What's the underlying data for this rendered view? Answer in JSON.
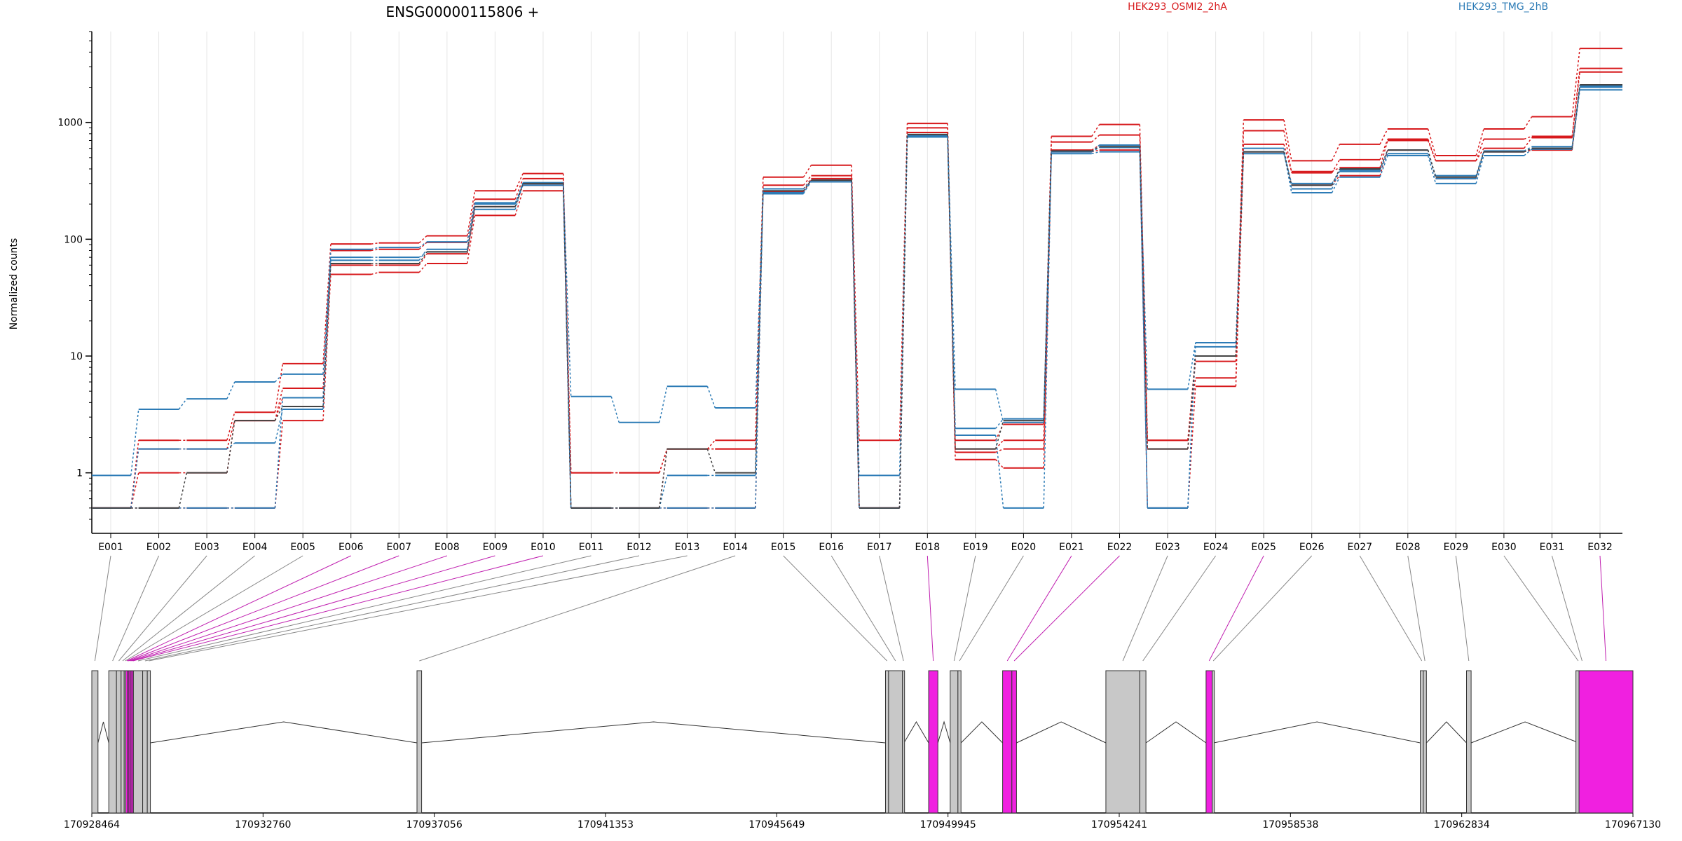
{
  "chart_data": {
    "type": "line",
    "title": "ENSG00000115806 +",
    "ylabel": "Normalized counts",
    "yscale": "log",
    "ylim": [
      0.4,
      6000
    ],
    "y_ticks": [
      1,
      10,
      100,
      1000
    ],
    "y_tick_labels": [
      "1",
      "10",
      "100",
      "1000"
    ],
    "grid": "vertical",
    "legend": [
      {
        "name": "HEK293_OSMI2_2hA",
        "color": "#d7191c"
      },
      {
        "name": "HEK293_TMG_2hB",
        "color": "#2c7bb6"
      }
    ],
    "categories": [
      "E001",
      "E002",
      "E003",
      "E004",
      "E005",
      "E006",
      "E007",
      "E008",
      "E009",
      "E010",
      "E011",
      "E012",
      "E013",
      "E014",
      "E015",
      "E016",
      "E017",
      "E018",
      "E019",
      "E020",
      "E021",
      "E022",
      "E023",
      "E024",
      "E025",
      "E026",
      "E027",
      "E028",
      "E029",
      "E030",
      "E031",
      "E032"
    ],
    "series": [
      {
        "group": "red",
        "values": [
          0.5,
          0.5,
          0.5,
          0.5,
          2.8,
          50,
          52,
          62,
          160,
          260,
          0.5,
          0.5,
          0.5,
          0.5,
          255,
          320,
          0.5,
          780,
          1.3,
          1.1,
          560,
          580,
          0.5,
          5.5,
          560,
          290,
          350,
          580,
          330,
          560,
          580,
          2000
        ]
      },
      {
        "group": "red",
        "values": [
          0.5,
          1.0,
          1.0,
          2.8,
          5.3,
          60,
          60,
          75,
          190,
          290,
          1.0,
          1.0,
          1.6,
          1.6,
          270,
          330,
          0.5,
          820,
          1.5,
          1.6,
          580,
          640,
          1.9,
          6.5,
          650,
          380,
          410,
          700,
          470,
          600,
          740,
          2700
        ]
      },
      {
        "group": "red",
        "values": [
          0.5,
          1.9,
          1.9,
          3.3,
          8.6,
          91,
          93,
          107,
          260,
          365,
          1.0,
          1.0,
          1.6,
          1.9,
          340,
          430,
          1.9,
          980,
          1.9,
          2.6,
          760,
          960,
          1.9,
          10,
          1050,
          470,
          650,
          880,
          520,
          880,
          1120,
          4300
        ]
      },
      {
        "group": "red",
        "values": [
          0.5,
          1.6,
          1.6,
          2.8,
          4.4,
          80,
          82,
          94,
          220,
          330,
          0.5,
          0.5,
          1.6,
          1.6,
          290,
          350,
          0.5,
          900,
          1.6,
          1.9,
          680,
          780,
          1.6,
          9,
          850,
          370,
          480,
          720,
          470,
          720,
          760,
          2900
        ]
      },
      {
        "group": "blue",
        "values": [
          0.95,
          3.5,
          4.3,
          6.0,
          7.0,
          70,
          70,
          78,
          180,
          300,
          4.5,
          2.7,
          5.5,
          3.6,
          245,
          320,
          0.95,
          770,
          5.2,
          2.7,
          540,
          560,
          5.2,
          13,
          560,
          250,
          340,
          520,
          300,
          520,
          590,
          1900
        ]
      },
      {
        "group": "blue",
        "values": [
          0.5,
          1.6,
          1.6,
          1.8,
          3.5,
          66,
          66,
          82,
          200,
          305,
          0.5,
          0.5,
          0.95,
          0.95,
          250,
          310,
          0.5,
          750,
          2.4,
          2.9,
          560,
          610,
          0.5,
          12,
          600,
          270,
          390,
          580,
          330,
          560,
          600,
          2050
        ]
      },
      {
        "group": "blue",
        "values": [
          0.5,
          0.5,
          0.5,
          0.5,
          4.4,
          82,
          85,
          95,
          205,
          290,
          0.5,
          0.5,
          0.5,
          0.5,
          270,
          320,
          0.5,
          760,
          2.1,
          0.5,
          560,
          640,
          0.5,
          13,
          540,
          300,
          380,
          540,
          350,
          570,
          620,
          2000
        ]
      },
      {
        "group": "gray",
        "values": [
          0.5,
          0.5,
          1.0,
          2.8,
          3.7,
          62,
          62,
          78,
          190,
          300,
          0.5,
          0.5,
          1.6,
          1.0,
          260,
          320,
          0.5,
          790,
          1.6,
          2.8,
          570,
          620,
          1.6,
          10,
          560,
          290,
          400,
          580,
          340,
          560,
          600,
          2100
        ]
      }
    ],
    "genome_axis": {
      "tick_labels": [
        "170928464",
        "170932760",
        "170937056",
        "170941353",
        "170945649",
        "170949945",
        "170954241",
        "170958538",
        "170962834",
        "170967130"
      ]
    },
    "exon_model": {
      "colors": {
        "normal": "#c8c8c8",
        "significant": "#f020e0",
        "border": "#333333"
      },
      "significant_exons": [
        "E006",
        "E007",
        "E008",
        "E009",
        "E010",
        "E018",
        "E021",
        "E022",
        "E025",
        "E032"
      ]
    }
  }
}
